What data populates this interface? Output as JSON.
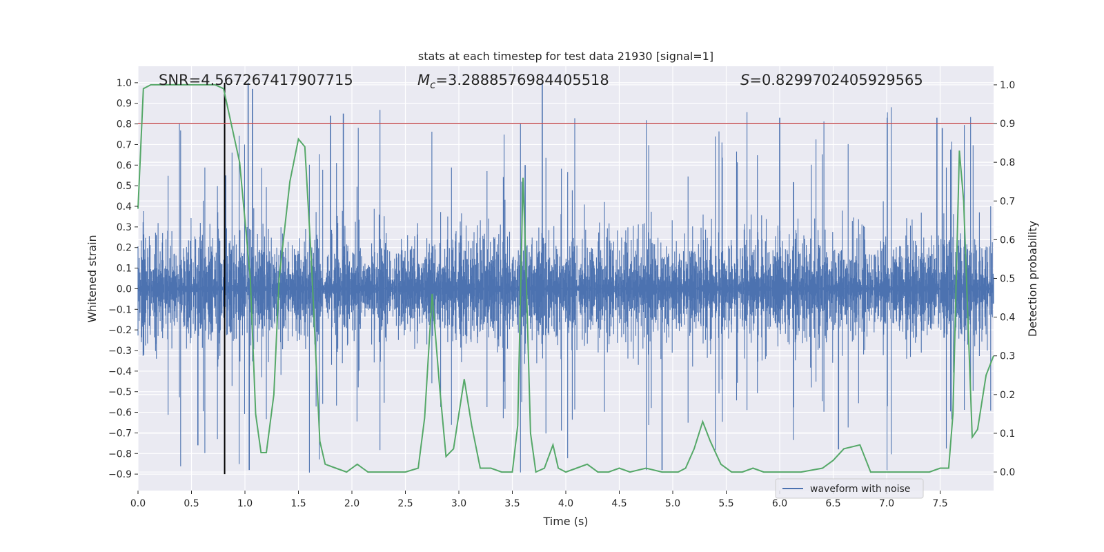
{
  "chart_data": {
    "type": "line",
    "title": "stats at each timestep for test data 21930 [signal=1]",
    "xlabel": "Time (s)",
    "ylabel": "Whitened strain",
    "y2label": "Detection probability",
    "xlim": [
      0,
      8.0
    ],
    "ylim": [
      -0.98,
      1.08
    ],
    "y2lim": [
      -0.048,
      1.048
    ],
    "xticks": [
      0.0,
      0.5,
      1.0,
      1.5,
      2.0,
      2.5,
      3.0,
      3.5,
      4.0,
      4.5,
      5.0,
      5.5,
      6.0,
      6.5,
      7.0,
      7.5
    ],
    "yticks": [
      1.0,
      0.9,
      0.8,
      0.7,
      0.6,
      0.5,
      0.4,
      0.3,
      0.2,
      0.1,
      0.0,
      -0.1,
      -0.2,
      -0.3,
      -0.4,
      -0.5,
      -0.6,
      -0.7,
      -0.8,
      -0.9
    ],
    "y2ticks": [
      1.0,
      0.9,
      0.8,
      0.7,
      0.6,
      0.5,
      0.4,
      0.3,
      0.2,
      0.1,
      0.0
    ],
    "annotations": {
      "snr": "SNR=4.567267417907715",
      "mc_symbol": "M",
      "mc_sub": "c",
      "mc_value": "=3.2888576984405518",
      "s_symbol": "S",
      "s_value": "=0.8299702405929565"
    },
    "legend": {
      "label": "waveform with noise",
      "location": "lower-right"
    },
    "threshold_line": {
      "axis": "y2",
      "value": 0.9,
      "color": "#c44e52"
    },
    "marker_line": {
      "x": 0.81,
      "y_from": -0.9,
      "y_to": 1.0,
      "color": "#000000"
    },
    "waveform": {
      "name": "waveform with noise",
      "color": "#4c72b0",
      "x_range": [
        0,
        8.0
      ],
      "samples": 2048,
      "typical_range": [
        -0.45,
        0.45
      ],
      "peak_max": 1.0,
      "peak_min": -0.9
    },
    "detection_probability": {
      "name": "detection probability",
      "axis": "y2",
      "color": "#55a868",
      "x": [
        0.0,
        0.05,
        0.12,
        0.25,
        0.5,
        0.72,
        0.8,
        0.95,
        1.05,
        1.1,
        1.15,
        1.2,
        1.27,
        1.32,
        1.42,
        1.5,
        1.56,
        1.62,
        1.7,
        1.75,
        1.85,
        1.95,
        2.05,
        2.1,
        2.15,
        2.3,
        2.5,
        2.62,
        2.68,
        2.75,
        2.82,
        2.88,
        2.95,
        3.05,
        3.12,
        3.2,
        3.3,
        3.4,
        3.5,
        3.55,
        3.6,
        3.62,
        3.67,
        3.72,
        3.8,
        3.88,
        3.93,
        4.0,
        4.1,
        4.2,
        4.3,
        4.4,
        4.5,
        4.6,
        4.75,
        4.9,
        5.05,
        5.12,
        5.2,
        5.28,
        5.35,
        5.45,
        5.55,
        5.65,
        5.75,
        5.85,
        6.0,
        6.2,
        6.4,
        6.5,
        6.6,
        6.75,
        6.85,
        7.0,
        7.2,
        7.4,
        7.5,
        7.58,
        7.62,
        7.68,
        7.72,
        7.8,
        7.85,
        7.93,
        8.0
      ],
      "y": [
        0.68,
        0.99,
        1.0,
        1.0,
        1.0,
        1.0,
        0.99,
        0.8,
        0.5,
        0.15,
        0.05,
        0.05,
        0.2,
        0.5,
        0.75,
        0.86,
        0.84,
        0.55,
        0.08,
        0.02,
        0.01,
        0.0,
        0.02,
        0.01,
        0.0,
        0.0,
        0.0,
        0.01,
        0.14,
        0.46,
        0.22,
        0.04,
        0.06,
        0.24,
        0.12,
        0.01,
        0.01,
        0.0,
        0.0,
        0.12,
        0.76,
        0.6,
        0.1,
        0.0,
        0.01,
        0.07,
        0.01,
        0.0,
        0.01,
        0.02,
        0.0,
        0.0,
        0.01,
        0.0,
        0.01,
        0.0,
        0.0,
        0.01,
        0.06,
        0.13,
        0.08,
        0.02,
        0.0,
        0.0,
        0.01,
        0.0,
        0.0,
        0.0,
        0.01,
        0.03,
        0.06,
        0.07,
        0.0,
        0.0,
        0.0,
        0.0,
        0.01,
        0.01,
        0.15,
        0.83,
        0.7,
        0.09,
        0.11,
        0.25,
        0.3
      ]
    }
  }
}
